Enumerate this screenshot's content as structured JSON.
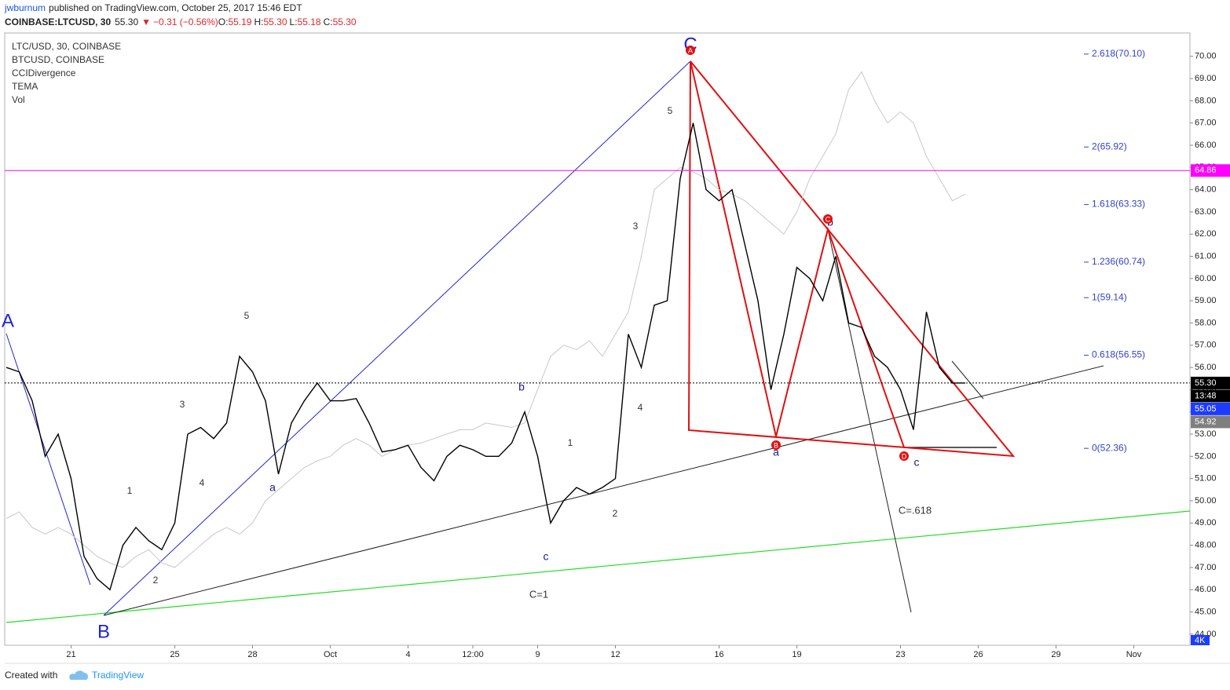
{
  "header": {
    "author": "jwburnum",
    "published": "published on TradingView.com, October 25, 2017 15:46 EDT",
    "symbol": "COINBASE:LTCUSD, 30",
    "last": "55.30",
    "change": "−0.31 (−0.56%)",
    "ohlc": [
      {
        "key": "O:",
        "value": "55.19"
      },
      {
        "key": "H:",
        "value": "55.30"
      },
      {
        "key": "L:",
        "value": "55.18"
      },
      {
        "key": "C:",
        "value": "55.30"
      }
    ]
  },
  "chart_data": {
    "type": "line",
    "categories": [
      null,
      null,
      null,
      null,
      null,
      "21",
      null,
      null,
      null,
      null,
      null,
      null,
      null,
      "25",
      null,
      null,
      null,
      null,
      null,
      "28",
      null,
      null,
      null,
      null,
      null,
      "Oct",
      null,
      null,
      null,
      null,
      null,
      "4",
      null,
      null,
      null,
      null,
      "12:00",
      null,
      null,
      null,
      null,
      "9",
      null,
      null,
      null,
      null,
      null,
      "12",
      null,
      null,
      null,
      null,
      null,
      null,
      null,
      "16",
      null,
      null,
      null,
      null,
      null,
      "19",
      null,
      null,
      null,
      null,
      null,
      null,
      null,
      "23",
      null,
      null,
      null,
      null,
      null,
      "26",
      null,
      null,
      null,
      null,
      null,
      "29",
      null,
      null,
      null,
      null,
      null,
      "Nov",
      null,
      null,
      null,
      null
    ],
    "series": [
      {
        "name": "LTC/USD, 30, COINBASE",
        "color": "#000000",
        "values": [
          56.0,
          55.8,
          54.5,
          52.0,
          53.0,
          51.0,
          47.5,
          46.5,
          46.0,
          48.0,
          48.8,
          48.2,
          47.8,
          49.0,
          53.0,
          53.3,
          52.8,
          53.5,
          56.5,
          55.8,
          54.5,
          51.2,
          53.5,
          54.5,
          55.3,
          54.5,
          54.5,
          54.6,
          53.5,
          52.2,
          52.3,
          52.5,
          51.5,
          50.9,
          52.0,
          52.5,
          52.3,
          52.0,
          52.0,
          52.6,
          54.0,
          52.0,
          49.0,
          50.0,
          50.6,
          50.3,
          50.6,
          51.0,
          57.5,
          56.0,
          58.8,
          59.0,
          64.5,
          67.0,
          64.0,
          63.5,
          64.0,
          61.5,
          59.0,
          55.0,
          57.5,
          60.5,
          60.0,
          59.0,
          61.0,
          58.0,
          57.8,
          56.5,
          56.0,
          55.0,
          53.2,
          58.5,
          56.0,
          55.3,
          55.3,
          null,
          null,
          null,
          null,
          null,
          null,
          null,
          null,
          null,
          null,
          null,
          null,
          null,
          null,
          null,
          null,
          null
        ]
      },
      {
        "name": "BTCUSD, COINBASE",
        "color": "#c8c8c8",
        "values": [
          49.2,
          49.5,
          48.8,
          48.5,
          48.8,
          48.5,
          48.0,
          47.5,
          47.2,
          47.0,
          47.5,
          47.8,
          47.2,
          47.0,
          47.5,
          48.0,
          48.5,
          48.8,
          48.5,
          49.0,
          50.0,
          50.5,
          51.0,
          51.5,
          51.8,
          52.0,
          52.5,
          52.8,
          52.5,
          52.0,
          52.3,
          52.5,
          52.6,
          52.8,
          53.0,
          53.2,
          53.2,
          53.5,
          53.4,
          53.3,
          53.5,
          55.0,
          56.5,
          57.0,
          56.8,
          57.2,
          56.5,
          57.5,
          58.5,
          61.0,
          64.0,
          64.5,
          65.0,
          64.8,
          64.5,
          64.0,
          63.8,
          63.5,
          63.0,
          62.5,
          62.0,
          63.0,
          64.5,
          65.5,
          66.5,
          68.5,
          69.3,
          68.0,
          67.0,
          67.5,
          67.0,
          65.5,
          64.5,
          63.5,
          63.8,
          null,
          null,
          null,
          null,
          null,
          null,
          null,
          null,
          null,
          null,
          null,
          null,
          null,
          null,
          null,
          null,
          null
        ]
      }
    ],
    "indicators": [
      "CCIDivergence",
      "TEMA",
      "Vol"
    ],
    "ylim": [
      43.5,
      71.05
    ],
    "yticks": [
      {
        "value": 44,
        "label": "44.00"
      },
      {
        "value": 45,
        "label": "45.00"
      },
      {
        "value": 46,
        "label": "46.00"
      },
      {
        "value": 47,
        "label": "47.00"
      },
      {
        "value": 48,
        "label": "48.00"
      },
      {
        "value": 49,
        "label": "49.00"
      },
      {
        "value": 50,
        "label": "50.00"
      },
      {
        "value": 51,
        "label": "51.00"
      },
      {
        "value": 52,
        "label": "52.00"
      },
      {
        "value": 53,
        "label": "53.00"
      },
      {
        "value": 54,
        "label": "54.00"
      },
      {
        "value": 55,
        "label": "55.00"
      },
      {
        "value": 56,
        "label": "56.00"
      },
      {
        "value": 57,
        "label": "57.00"
      },
      {
        "value": 58,
        "label": "58.00"
      },
      {
        "value": 59,
        "label": "59.00"
      },
      {
        "value": 60,
        "label": "60.00"
      },
      {
        "value": 61,
        "label": "61.00"
      },
      {
        "value": 62,
        "label": "62.00"
      },
      {
        "value": 63,
        "label": "63.00"
      },
      {
        "value": 64,
        "label": "64.00"
      },
      {
        "value": 65,
        "label": "65.00"
      },
      {
        "value": 66,
        "label": "66.00"
      },
      {
        "value": 67,
        "label": "67.00"
      },
      {
        "value": 68,
        "label": "68.00"
      },
      {
        "value": 69,
        "label": "69.00"
      },
      {
        "value": 70,
        "label": "70.00"
      }
    ],
    "fib_levels": [
      {
        "value": 70.1,
        "label": "2.618(70.10)"
      },
      {
        "value": 65.92,
        "label": "2(65.92)"
      },
      {
        "value": 63.33,
        "label": "1.618(63.33)"
      },
      {
        "value": 60.74,
        "label": "1.236(60.74)"
      },
      {
        "value": 59.14,
        "label": "1(59.14)"
      },
      {
        "value": 56.55,
        "label": "0.618(56.55)"
      },
      {
        "value": 52.36,
        "label": "0(52.36)"
      }
    ],
    "price_levels": [
      {
        "value": 64.86,
        "label": "64.86",
        "color": "#ff00ff",
        "line": "solid"
      },
      {
        "value": 55.3,
        "label": "55.30",
        "color": "#000000",
        "line": "dotted"
      },
      {
        "value": 55.05,
        "label": "55.05",
        "color": "#1e3cff"
      },
      {
        "value": 54.92,
        "label": "54.92",
        "color": "#7f7f7f"
      }
    ],
    "countdown": "13:48",
    "volume_label": "4K",
    "annotations": [
      "C",
      "A",
      "B",
      "5",
      "3",
      "4",
      "1",
      "2",
      "a",
      "b",
      "c",
      "1",
      "2",
      "3",
      "4",
      "5",
      "a",
      "b",
      "c",
      "C=1",
      "C=.618"
    ],
    "markers": [
      "A",
      "B",
      "C",
      "D"
    ]
  },
  "footer": {
    "created": "Created with",
    "brand": "TradingView"
  }
}
